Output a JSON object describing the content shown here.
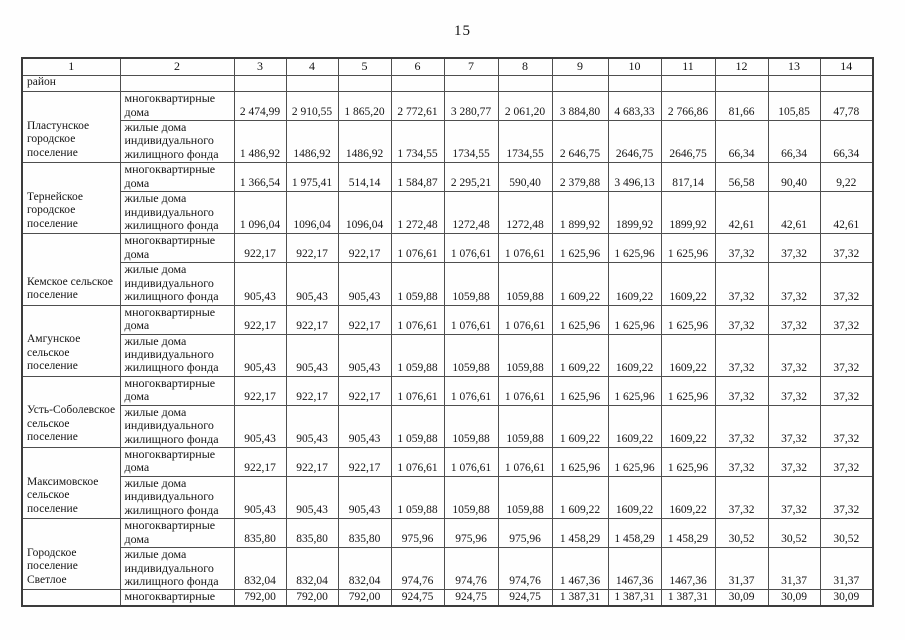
{
  "page": {
    "number": "15"
  },
  "table": {
    "column_headers": [
      "1",
      "2",
      "3",
      "4",
      "5",
      "6",
      "7",
      "8",
      "9",
      "10",
      "11",
      "12",
      "13",
      "14"
    ],
    "continuation_label": "район",
    "row_labels": {
      "apartment": "многоквартирные дома",
      "individual": "жилые дома индивидуального жилищного фонда"
    },
    "sections": [
      {
        "name": "Пластунское городское поселение",
        "apartment_values": [
          "2 474,99",
          "2 910,55",
          "1 865,20",
          "2 772,61",
          "3 280,77",
          "2 061,20",
          "3 884,80",
          "4 683,33",
          "2 766,86",
          "81,66",
          "105,85",
          "47,78"
        ],
        "individual_values": [
          "1 486,92",
          "1486,92",
          "1486,92",
          "1 734,55",
          "1734,55",
          "1734,55",
          "2 646,75",
          "2646,75",
          "2646,75",
          "66,34",
          "66,34",
          "66,34"
        ]
      },
      {
        "name": "Тернейское городское поселение",
        "apartment_values": [
          "1 366,54",
          "1 975,41",
          "514,14",
          "1 584,87",
          "2 295,21",
          "590,40",
          "2 379,88",
          "3 496,13",
          "817,14",
          "56,58",
          "90,40",
          "9,22"
        ],
        "individual_values": [
          "1 096,04",
          "1096,04",
          "1096,04",
          "1 272,48",
          "1272,48",
          "1272,48",
          "1 899,92",
          "1899,92",
          "1899,92",
          "42,61",
          "42,61",
          "42,61"
        ]
      },
      {
        "name": "Кемское сельское поселение",
        "apartment_values": [
          "922,17",
          "922,17",
          "922,17",
          "1 076,61",
          "1 076,61",
          "1 076,61",
          "1 625,96",
          "1 625,96",
          "1 625,96",
          "37,32",
          "37,32",
          "37,32"
        ],
        "individual_values": [
          "905,43",
          "905,43",
          "905,43",
          "1 059,88",
          "1059,88",
          "1059,88",
          "1 609,22",
          "1609,22",
          "1609,22",
          "37,32",
          "37,32",
          "37,32"
        ]
      },
      {
        "name": "Амгунское сельское поселение",
        "apartment_values": [
          "922,17",
          "922,17",
          "922,17",
          "1 076,61",
          "1 076,61",
          "1 076,61",
          "1 625,96",
          "1 625,96",
          "1 625,96",
          "37,32",
          "37,32",
          "37,32"
        ],
        "individual_values": [
          "905,43",
          "905,43",
          "905,43",
          "1 059,88",
          "1059,88",
          "1059,88",
          "1 609,22",
          "1609,22",
          "1609,22",
          "37,32",
          "37,32",
          "37,32"
        ]
      },
      {
        "name": "Усть-Соболевское сельское поселение",
        "apartment_values": [
          "922,17",
          "922,17",
          "922,17",
          "1 076,61",
          "1 076,61",
          "1 076,61",
          "1 625,96",
          "1 625,96",
          "1 625,96",
          "37,32",
          "37,32",
          "37,32"
        ],
        "individual_values": [
          "905,43",
          "905,43",
          "905,43",
          "1 059,88",
          "1059,88",
          "1059,88",
          "1 609,22",
          "1609,22",
          "1609,22",
          "37,32",
          "37,32",
          "37,32"
        ]
      },
      {
        "name": "Максимовское сельское поселение",
        "apartment_values": [
          "922,17",
          "922,17",
          "922,17",
          "1 076,61",
          "1 076,61",
          "1 076,61",
          "1 625,96",
          "1 625,96",
          "1 625,96",
          "37,32",
          "37,32",
          "37,32"
        ],
        "individual_values": [
          "905,43",
          "905,43",
          "905,43",
          "1 059,88",
          "1059,88",
          "1059,88",
          "1 609,22",
          "1609,22",
          "1609,22",
          "37,32",
          "37,32",
          "37,32"
        ]
      },
      {
        "name": "Городское поселение Светлое",
        "apartment_values": [
          "835,80",
          "835,80",
          "835,80",
          "975,96",
          "975,96",
          "975,96",
          "1 458,29",
          "1 458,29",
          "1 458,29",
          "30,52",
          "30,52",
          "30,52"
        ],
        "individual_values": [
          "832,04",
          "832,04",
          "832,04",
          "974,76",
          "974,76",
          "974,76",
          "1 467,36",
          "1467,36",
          "1467,36",
          "31,37",
          "31,37",
          "31,37"
        ]
      }
    ],
    "trailing_row": {
      "label": "многоквартирные",
      "values": [
        "792,00",
        "792,00",
        "792,00",
        "924,75",
        "924,75",
        "924,75",
        "1 387,31",
        "1 387,31",
        "1 387,31",
        "30,09",
        "30,09",
        "30,09"
      ]
    }
  }
}
